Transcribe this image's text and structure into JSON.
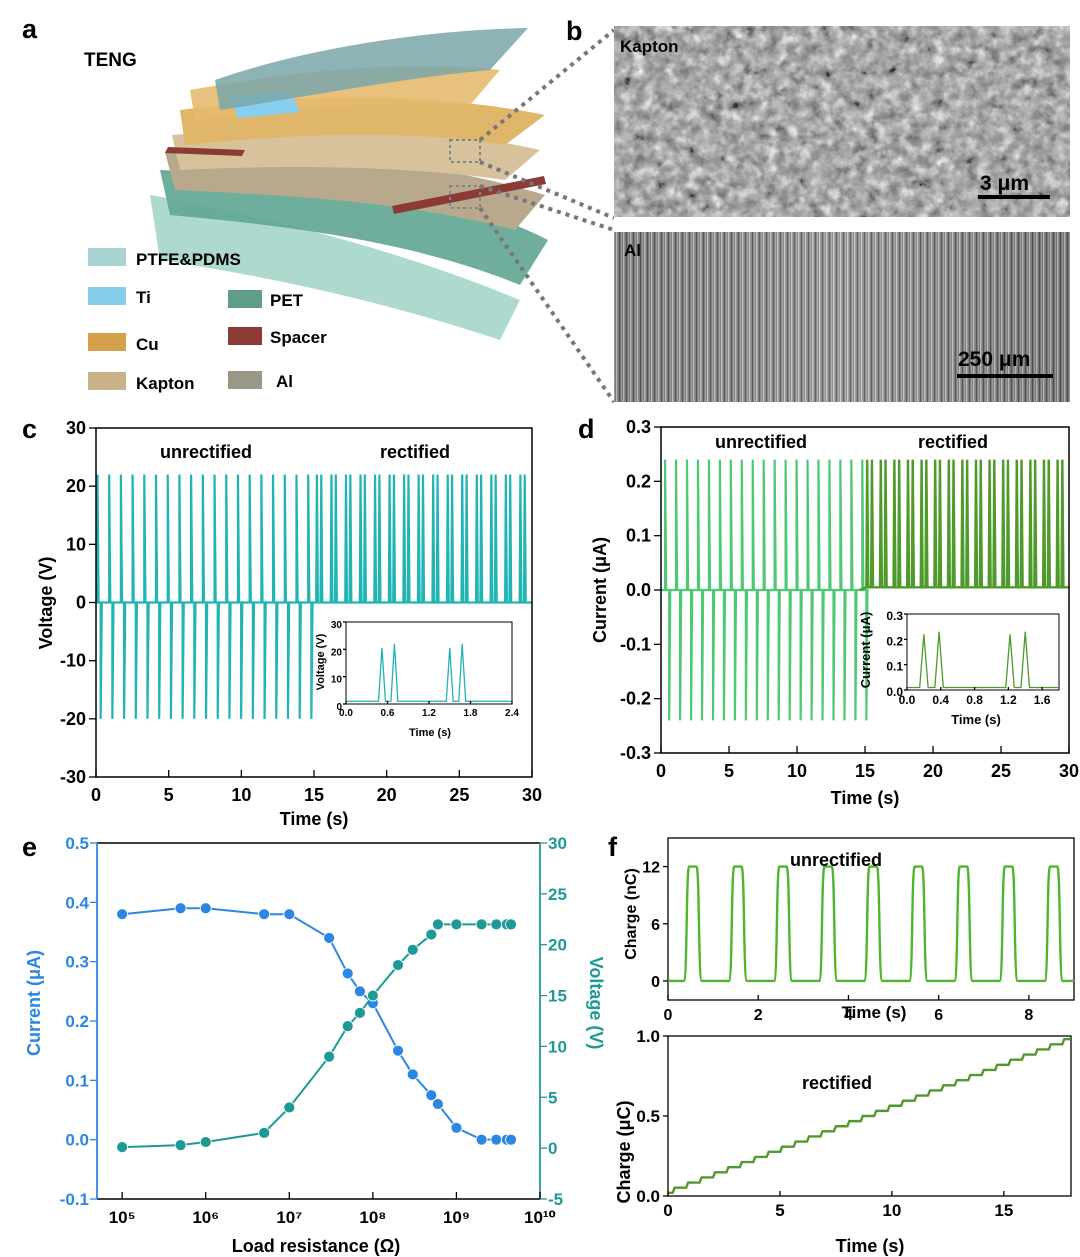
{
  "panels": {
    "a": "a",
    "b": "b",
    "c": "c",
    "d": "d",
    "e": "e",
    "f": "f"
  },
  "panel_a": {
    "title": "TENG",
    "legend": [
      {
        "label": "PTFE&PDMS",
        "color": "#a9d3d1"
      },
      {
        "label": "Ti",
        "color": "#87cdea"
      },
      {
        "label": "Cu",
        "color": "#d4a04c"
      },
      {
        "label": "Kapton",
        "color": "#c9b18a"
      },
      {
        "label": "PET",
        "color": "#5f9c89"
      },
      {
        "label": "Spacer",
        "color": "#8b3a36"
      },
      {
        "label": "Al",
        "color": "#9a9786"
      }
    ]
  },
  "panel_b": {
    "top_label": "Kapton",
    "top_scale": "3 μm",
    "bottom_label": "Al",
    "bottom_scale": "250 μm"
  },
  "chart_data": [
    {
      "id": "c",
      "type": "line",
      "xlabel": "Time (s)",
      "ylabel": "Voltage (V)",
      "xlim": [
        0,
        30
      ],
      "ylim": [
        -30,
        30
      ],
      "xticks": [
        0,
        5,
        10,
        15,
        20,
        25,
        30
      ],
      "yticks": [
        -30,
        -20,
        -10,
        0,
        10,
        20,
        30
      ],
      "color": "#22b3b3",
      "annotations": [
        "unrectified",
        "rectified"
      ],
      "series": [
        {
          "segment": "unrectified",
          "x_range": [
            0,
            14.5
          ],
          "peak_count": 19,
          "peak_max": 22,
          "peak_min": -20
        },
        {
          "segment": "rectified",
          "x_range": [
            15,
            30
          ],
          "peak_pair_count": 15,
          "peak_max": 22,
          "peak_min": 0
        }
      ],
      "inset": {
        "xlabel": "Time (s)",
        "ylabel": "Voltage (V)",
        "xlim": [
          0,
          2.4
        ],
        "ylim": [
          0,
          30
        ],
        "xticks": [
          0.0,
          0.6,
          1.2,
          1.8,
          2.4
        ],
        "yticks": [
          0,
          10,
          20,
          30
        ],
        "peaks": [
          {
            "x": 0.52,
            "y": 20.5
          },
          {
            "x": 0.7,
            "y": 22
          },
          {
            "x": 1.5,
            "y": 20.5
          },
          {
            "x": 1.68,
            "y": 22
          }
        ]
      }
    },
    {
      "id": "d",
      "type": "line",
      "xlabel": "Time (s)",
      "ylabel": "Current (μA)",
      "xlim": [
        0,
        30
      ],
      "ylim": [
        -0.3,
        0.3
      ],
      "xticks": [
        0,
        5,
        10,
        15,
        20,
        25,
        30
      ],
      "yticks": [
        -0.3,
        -0.2,
        -0.1,
        0.0,
        0.1,
        0.2,
        0.3
      ],
      "colors": [
        "#4fc873",
        "#4e9a2a"
      ],
      "annotations": [
        "unrectified",
        "rectified"
      ],
      "series": [
        {
          "segment": "unrectified",
          "x_range": [
            0,
            14.5
          ],
          "peak_count": 19,
          "peak_max": 0.24,
          "peak_min": -0.24
        },
        {
          "segment": "rectified",
          "x_range": [
            15,
            30
          ],
          "peak_pair_count": 15,
          "peak_max": 0.24,
          "peak_min": 0
        }
      ],
      "inset": {
        "xlabel": "Time (s)",
        "ylabel": "Current (μA)",
        "xlim": [
          0,
          1.8
        ],
        "ylim": [
          0,
          0.3
        ],
        "xticks": [
          0.0,
          0.4,
          0.8,
          1.2,
          1.6
        ],
        "yticks": [
          0.0,
          0.1,
          0.2,
          0.3
        ],
        "peaks": [
          {
            "x": 0.2,
            "y": 0.22
          },
          {
            "x": 0.38,
            "y": 0.23
          },
          {
            "x": 1.22,
            "y": 0.22
          },
          {
            "x": 1.4,
            "y": 0.23
          }
        ]
      }
    },
    {
      "id": "e",
      "type": "scatter",
      "xlabel": "Load resistance (Ω)",
      "xscale": "log",
      "xlim": [
        50000,
        10000000000
      ],
      "xticks": [
        "10⁵",
        "10⁶",
        "10⁷",
        "10⁸",
        "10⁹",
        "10¹⁰"
      ],
      "y_left": {
        "label": "Current (μA)",
        "range": [
          -0.1,
          0.5
        ],
        "ticks": [
          -0.1,
          0.0,
          0.1,
          0.2,
          0.3,
          0.4,
          0.5
        ],
        "color": "#2b87e3"
      },
      "y_right": {
        "label": "Voltage (V)",
        "range": [
          -5,
          30
        ],
        "ticks": [
          -5,
          0,
          5,
          10,
          15,
          20,
          25,
          30
        ],
        "color": "#1e9a96"
      },
      "x": [
        100000,
        500000,
        1000000,
        5000000,
        10000000,
        30000000,
        50000000,
        70000000,
        100000000,
        200000000,
        300000000,
        500000000,
        600000000,
        1000000000,
        2000000000,
        3000000000,
        4000000000,
        4500000000
      ],
      "series": [
        {
          "name": "Current (μA)",
          "axis": "left",
          "values": [
            0.38,
            0.39,
            0.39,
            0.38,
            0.38,
            0.34,
            0.28,
            0.25,
            0.23,
            0.15,
            0.11,
            0.075,
            0.06,
            0.02,
            0.0,
            0.0,
            0.0,
            0.0
          ]
        },
        {
          "name": "Voltage (V)",
          "axis": "right",
          "values": [
            0.1,
            0.3,
            0.6,
            1.5,
            4.0,
            9.0,
            12.0,
            13.3,
            15.0,
            18.0,
            19.5,
            21.0,
            22.0,
            22.0,
            22.0,
            22.0,
            22.0,
            22.0
          ]
        }
      ]
    },
    {
      "id": "f1",
      "type": "line",
      "xlabel": "Time (s)",
      "ylabel": "Charge (nC)",
      "xlim": [
        0,
        9
      ],
      "ylim": [
        -2,
        15
      ],
      "xticks": [
        0,
        2,
        4,
        6,
        8
      ],
      "yticks": [
        0,
        6,
        12
      ],
      "color": "#4fb52d",
      "annotation": "unrectified",
      "pulses": {
        "count": 9,
        "first_center": 0.55,
        "period": 1.0,
        "height": 12
      }
    },
    {
      "id": "f2",
      "type": "line",
      "xlabel": "Time (s)",
      "ylabel": "Charge (μC)",
      "xlim": [
        0,
        18
      ],
      "ylim": [
        0,
        1.0
      ],
      "xticks": [
        0,
        5,
        10,
        15
      ],
      "yticks": [
        0.0,
        0.5,
        1.0
      ],
      "color": "#4e9a2a",
      "annotation": "rectified",
      "endpoints": [
        {
          "x": 0,
          "y": 0.02
        },
        {
          "x": 18,
          "y": 0.98
        }
      ]
    }
  ]
}
